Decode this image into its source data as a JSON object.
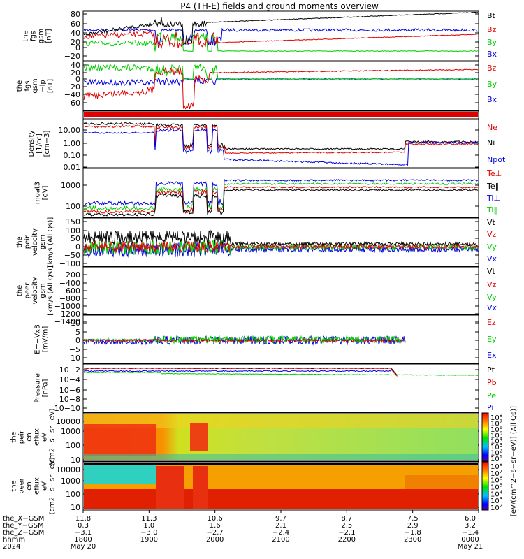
{
  "title": "P4 (TH-E) fields and ground moments overview",
  "colors": {
    "black": "#000000",
    "red": "#e00000",
    "green": "#00cc00",
    "blue": "#0000e0"
  },
  "chart_data": [
    {
      "type": "line",
      "ylabel": "the\nfgs\ngsm\n[nT]",
      "yticks": [
        "80",
        "60",
        "40",
        "20",
        "0",
        "−20"
      ],
      "series": [
        {
          "name": "Bt",
          "color": "#000000"
        },
        {
          "name": "Bz",
          "color": "#e00000"
        },
        {
          "name": "By",
          "color": "#00cc00"
        },
        {
          "name": "Bx",
          "color": "#0000e0"
        }
      ],
      "ylim": [
        -30,
        90
      ]
    },
    {
      "type": "line",
      "ylabel": "the\nfgs\ngsm\n−lp\n[nT]",
      "yticks": [
        "40",
        "20",
        "0",
        "−20",
        "−40",
        "−60"
      ],
      "series": [
        {
          "name": "Bz",
          "color": "#e00000"
        },
        {
          "name": "By",
          "color": "#00cc00"
        },
        {
          "name": "Bx",
          "color": "#0000e0"
        }
      ],
      "ylim": [
        -80,
        40
      ]
    },
    {
      "type": "bar",
      "ylabel": "",
      "series": [],
      "note": "red status bar"
    },
    {
      "type": "line",
      "ylabel": "Density\n[1/cc]\n[cm−3]",
      "yscale": "log",
      "yticks": [
        "10.00",
        "1.00",
        "0.10",
        "0.01"
      ],
      "series": [
        {
          "name": "Ne",
          "color": "#e00000"
        },
        {
          "name": "Ni",
          "color": "#000000"
        },
        {
          "name": "Npot",
          "color": "#0000e0"
        }
      ],
      "ylim": [
        0.005,
        30
      ]
    },
    {
      "type": "line",
      "ylabel": "moat3\n[eV]",
      "yscale": "log",
      "yticks": [
        "1000",
        "100"
      ],
      "series": [
        {
          "name": "Te⊥",
          "color": "#e00000"
        },
        {
          "name": "Te‖",
          "color": "#000000"
        },
        {
          "name": "Ti⊥",
          "color": "#0000e0"
        },
        {
          "name": "Ti‖",
          "color": "#00cc00"
        }
      ],
      "ylim": [
        40,
        5000
      ]
    },
    {
      "type": "line",
      "ylabel": "the\npeir\nvelocity\ngsm\n[km/s (All Qs)]",
      "yticks": [
        "150",
        "100",
        "50",
        "0",
        "−50",
        "−100"
      ],
      "series": [
        {
          "name": "Vt",
          "color": "#000000"
        },
        {
          "name": "Vz",
          "color": "#e00000"
        },
        {
          "name": "Vy",
          "color": "#00cc00"
        },
        {
          "name": "Vx",
          "color": "#0000e0"
        }
      ],
      "ylim": [
        -110,
        155
      ]
    },
    {
      "type": "line",
      "ylabel": "the\npeer\nvelocity\ngsm\n[km/s (All Qs)]",
      "yticks": [
        "−200",
        "−400",
        "−600",
        "−800",
        "−1000",
        "−1200",
        "−1400"
      ],
      "series": [
        {
          "name": "Vt",
          "color": "#000000"
        },
        {
          "name": "Vz",
          "color": "#e00000"
        },
        {
          "name": "Vy",
          "color": "#00cc00"
        },
        {
          "name": "Vx",
          "color": "#0000e0"
        }
      ],
      "ylim": [
        -1500,
        -100
      ]
    },
    {
      "type": "line",
      "ylabel": "E=−VxB\n[mV/m]",
      "yticks": [
        "10",
        "5",
        "0",
        "−5",
        "−10"
      ],
      "series": [
        {
          "name": "Ez",
          "color": "#e00000"
        },
        {
          "name": "Ey",
          "color": "#00cc00"
        },
        {
          "name": "Ex",
          "color": "#0000e0"
        }
      ],
      "ylim": [
        -11,
        11
      ]
    },
    {
      "type": "line",
      "ylabel": "Pressure\n[nPa]",
      "yscale": "log",
      "yticks": [
        "10−2",
        "10−4",
        "10−6",
        "10−8",
        "10−10"
      ],
      "series": [
        {
          "name": "Pt",
          "color": "#000000"
        },
        {
          "name": "Pb",
          "color": "#e00000"
        },
        {
          "name": "Pe",
          "color": "#00cc00"
        },
        {
          "name": "Pi",
          "color": "#0000e0"
        }
      ],
      "ylim": [
        1e-11,
        1
      ]
    },
    {
      "type": "heatmap",
      "ylabel": "the\npeir\nen\neflux\neV\n(cm2−s−sr−eV)",
      "yscale": "log",
      "yticks": [
        "10000",
        "1000",
        "100",
        "10"
      ],
      "ylim": [
        5,
        20000
      ]
    },
    {
      "type": "heatmap",
      "ylabel": "the\npeer\nen\neflux\neV\n(cm2−s−sr−eV)",
      "yscale": "log",
      "yticks": [
        "10000",
        "1000",
        "100",
        "10"
      ],
      "ylim": [
        5,
        20000
      ]
    }
  ],
  "colorbars": [
    {
      "ticks": [
        "10^8",
        "10^7",
        "10^6",
        "10^5",
        "10^4",
        "10^3",
        "10^2",
        "10^1"
      ]
    },
    {
      "ticks": [
        "10^8",
        "10^7",
        "10^6",
        "10^5",
        "10^4",
        "10^3",
        "10^2"
      ]
    }
  ],
  "colorbar_label": "[eV/(cm^2−s−sr−eV)] (All Qs)]",
  "xaxis": {
    "row_labels": [
      "the_X−GSM",
      "the_Y−GSM",
      "the_Z−GSM",
      "hhmm",
      "2024"
    ],
    "cols": [
      {
        "v": [
          "11.8",
          "0.3",
          "−3.1",
          "1800",
          "May 20"
        ]
      },
      {
        "v": [
          "11.3",
          "1.0",
          "−3.0",
          "1900",
          ""
        ]
      },
      {
        "v": [
          "10.6",
          "1.6",
          "−2.7",
          "2000",
          ""
        ]
      },
      {
        "v": [
          "9.7",
          "2.1",
          "−2.4",
          "2100",
          ""
        ]
      },
      {
        "v": [
          "8.7",
          "2.5",
          "−2.1",
          "2200",
          ""
        ]
      },
      {
        "v": [
          "7.5",
          "2.9",
          "−1.8",
          "2300",
          ""
        ]
      },
      {
        "v": [
          "6.0",
          "3.2",
          "−1.4",
          "0000",
          "May 21"
        ]
      }
    ]
  }
}
